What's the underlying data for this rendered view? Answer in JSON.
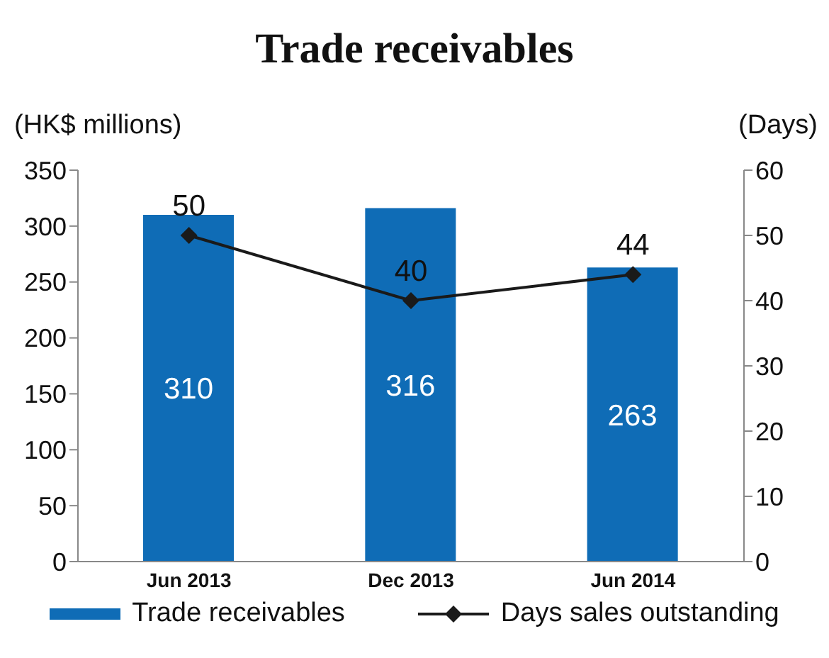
{
  "chart_data": {
    "type": "bar",
    "title": "Trade receivables",
    "ylabel": "(HK$ millions)",
    "y2label": "(Days)",
    "categories": [
      "Jun 2013",
      "Dec 2013",
      "Jun 2014"
    ],
    "series": [
      {
        "name": "Trade receivables",
        "color": "#0f6cb6",
        "values": [
          310,
          316,
          263
        ]
      },
      {
        "name": "Days sales outstanding",
        "type": "line",
        "color": "#1a1a1a",
        "axis": "y2",
        "values": [
          50,
          40,
          44
        ]
      }
    ],
    "ylim": [
      0,
      350
    ],
    "yticks": [
      0,
      50,
      100,
      150,
      200,
      250,
      300,
      350
    ],
    "y2lim": [
      0,
      60
    ],
    "y2ticks": [
      0,
      10,
      20,
      30,
      40,
      50,
      60
    ],
    "data_labels": true,
    "legend": "bottom",
    "marker": "diamond",
    "grid": false
  }
}
